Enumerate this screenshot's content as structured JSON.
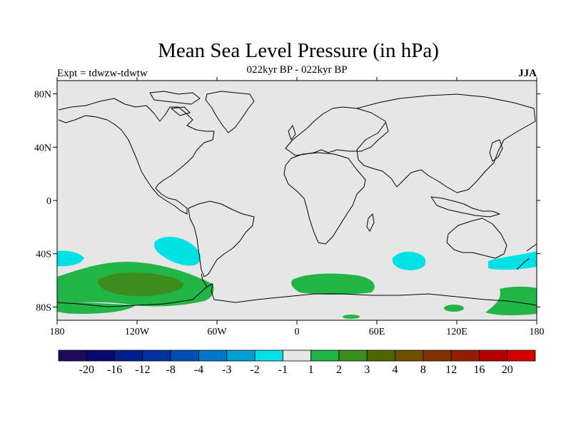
{
  "title": "Mean Sea Level Pressure (in hPa)",
  "subtitle_left": "Expt = tdwzw-tdwtw",
  "subtitle_center": "022kyr BP - 022kyr BP",
  "subtitle_right": "JJA",
  "map": {
    "lon_range": [
      -180,
      180
    ],
    "lat_range": [
      -90,
      90
    ],
    "background_color": "#e6e6e6",
    "x_ticks": [
      {
        "lon": -180,
        "label": "180"
      },
      {
        "lon": -120,
        "label": "120W"
      },
      {
        "lon": -60,
        "label": "60W"
      },
      {
        "lon": 0,
        "label": "0"
      },
      {
        "lon": 60,
        "label": "60E"
      },
      {
        "lon": 120,
        "label": "120E"
      },
      {
        "lon": 180,
        "label": "180"
      }
    ],
    "y_ticks": [
      {
        "lat": 80,
        "label": "80N"
      },
      {
        "lat": 40,
        "label": "40N"
      },
      {
        "lat": 0,
        "label": "0"
      },
      {
        "lat": -40,
        "label": "40S"
      },
      {
        "lat": -80,
        "label": "80S"
      }
    ]
  },
  "colorbar": {
    "colors": [
      "#1e0a5a",
      "#0a0a6e",
      "#001e8c",
      "#0032a0",
      "#0050b4",
      "#0078c8",
      "#00a0d2",
      "#00e1e6",
      "#e6e6e6",
      "#23b446",
      "#3c8c1e",
      "#506400",
      "#6e5000",
      "#823200",
      "#961e00",
      "#b40000",
      "#d20000"
    ],
    "labels": [
      "-20",
      "-16",
      "-12",
      "-8",
      "-4",
      "-3",
      "-2",
      "-1",
      "1",
      "2",
      "3",
      "4",
      "8",
      "12",
      "16",
      "20"
    ]
  }
}
